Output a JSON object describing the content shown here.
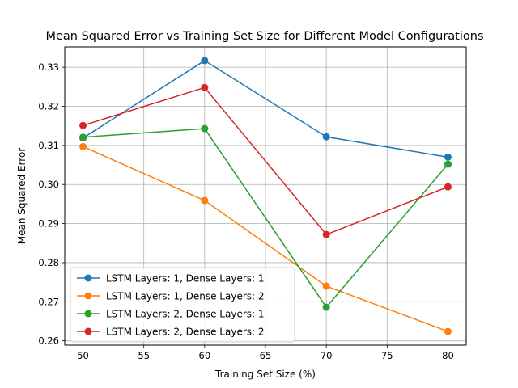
{
  "chart_data": {
    "type": "line",
    "title": "Mean Squared Error vs Training Set Size for Different Model Configurations",
    "xlabel": "Training Set Size (%)",
    "ylabel": "Mean Squared Error",
    "x": [
      50,
      60,
      70,
      80
    ],
    "xlim": [
      48.5,
      81.5
    ],
    "ylim": [
      0.2589,
      0.3352
    ],
    "xticks": [
      50,
      55,
      60,
      65,
      70,
      75,
      80
    ],
    "yticks": [
      0.26,
      0.27,
      0.28,
      0.29,
      0.3,
      0.31,
      0.32,
      0.33
    ],
    "ytick_labels": [
      "0.26",
      "0.27",
      "0.28",
      "0.29",
      "0.30",
      "0.31",
      "0.32",
      "0.33"
    ],
    "grid": true,
    "legend_position": "lower-left",
    "series": [
      {
        "name": "LSTM Layers: 1, Dense Layers: 1",
        "color": "#1f77b4",
        "values": [
          0.3119,
          0.3317,
          0.3122,
          0.307
        ]
      },
      {
        "name": "LSTM Layers: 1, Dense Layers: 2",
        "color": "#ff7f0e",
        "values": [
          0.3097,
          0.2959,
          0.274,
          0.2624
        ]
      },
      {
        "name": "LSTM Layers: 2, Dense Layers: 1",
        "color": "#2ca02c",
        "values": [
          0.3121,
          0.3143,
          0.2686,
          0.3052
        ]
      },
      {
        "name": "LSTM Layers: 2, Dense Layers: 2",
        "color": "#d62728",
        "values": [
          0.3151,
          0.3248,
          0.2872,
          0.2994
        ]
      }
    ]
  }
}
